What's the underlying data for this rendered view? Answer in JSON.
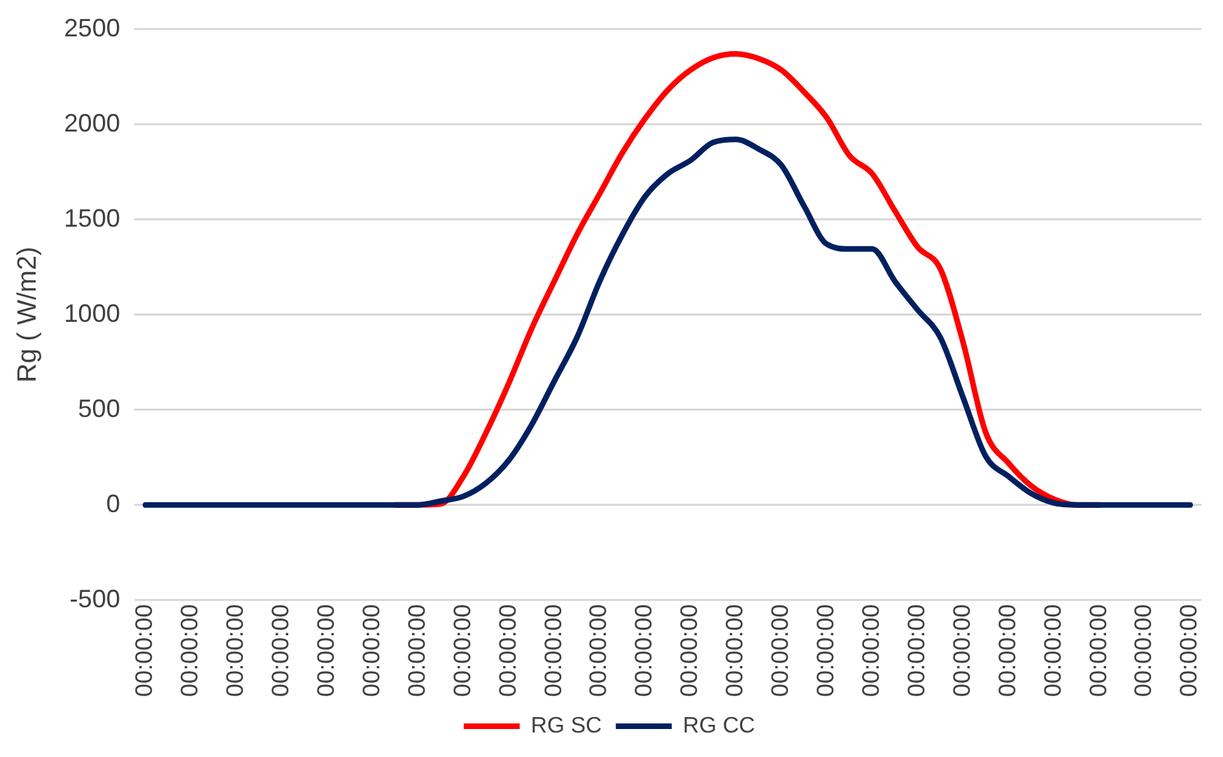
{
  "chart_data": {
    "type": "line",
    "ylabel": "Rg ( W/m2)",
    "categories": [
      "00:00:00",
      null,
      "00:00:00",
      null,
      "00:00:00",
      null,
      "00:00:00",
      null,
      "00:00:00",
      null,
      "00:00:00",
      null,
      "00:00:00",
      null,
      "00:00:00",
      null,
      "00:00:00",
      null,
      "00:00:00",
      null,
      "00:00:00",
      null,
      "00:00:00",
      null,
      "00:00:00",
      null,
      "00:00:00",
      null,
      "00:00:00",
      null,
      "00:00:00",
      null,
      "00:00:00",
      null,
      "00:00:00",
      null,
      "00:00:00",
      null,
      "00:00:00",
      null,
      "00:00:00",
      null,
      "00:00:00",
      null,
      "00:00:00",
      null,
      "00:00:00"
    ],
    "series": [
      {
        "name": "RG SC",
        "color": "#ff0000",
        "values": [
          null,
          null,
          null,
          null,
          null,
          null,
          null,
          null,
          null,
          null,
          null,
          0,
          0,
          5,
          150,
          380,
          640,
          925,
          1175,
          1420,
          1635,
          1850,
          2030,
          2180,
          2285,
          2350,
          2370,
          2345,
          2285,
          2170,
          2035,
          1835,
          1740,
          1545,
          1355,
          1240,
          855,
          380,
          220,
          100,
          30,
          0,
          0,
          null,
          null,
          null,
          null
        ]
      },
      {
        "name": "RG CC",
        "color": "#002060",
        "values": [
          0,
          0,
          0,
          0,
          0,
          0,
          0,
          0,
          0,
          0,
          0,
          0,
          0,
          20,
          45,
          115,
          235,
          420,
          650,
          880,
          1175,
          1420,
          1620,
          1740,
          1810,
          1905,
          1920,
          1870,
          1785,
          1570,
          1370,
          1345,
          1345,
          1175,
          1025,
          880,
          565,
          255,
          150,
          60,
          10,
          0,
          0,
          0,
          0,
          0,
          0
        ]
      }
    ],
    "ylim": [
      -500,
      2500
    ],
    "yticks": [
      -500,
      0,
      500,
      1000,
      1500,
      2000,
      2500
    ],
    "grid": "y",
    "legend": "bottom",
    "marker": "none",
    "line_style": "solid"
  }
}
